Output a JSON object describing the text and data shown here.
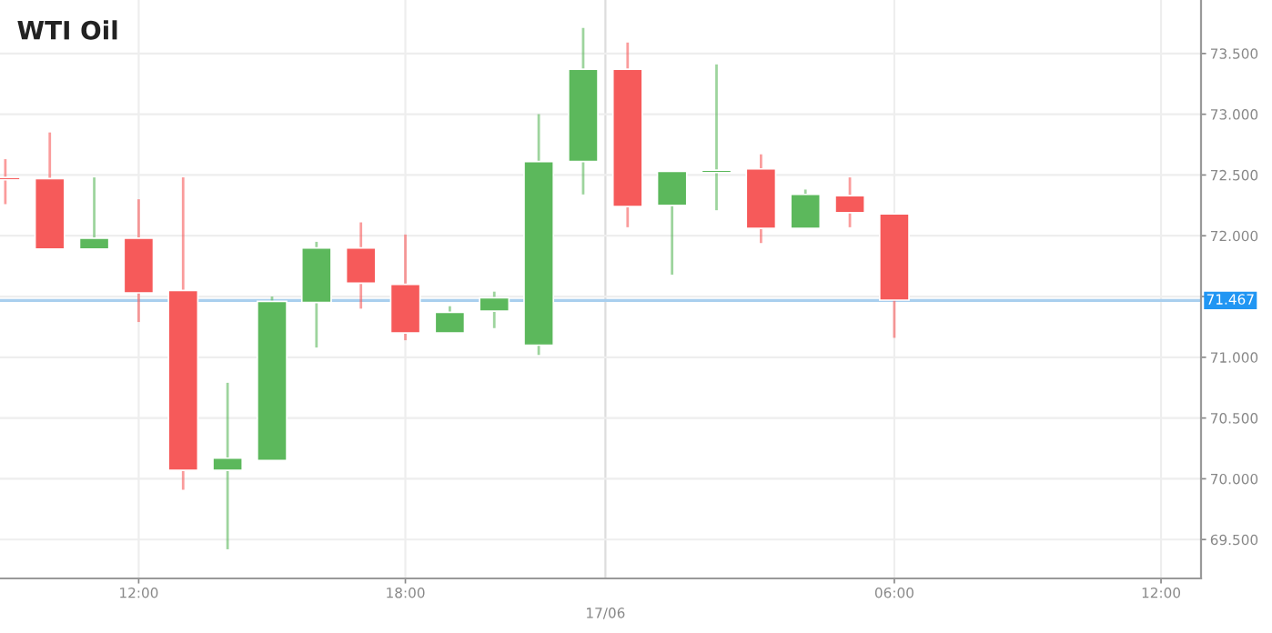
{
  "chart_data": {
    "type": "candlestick",
    "title": "WTI Oil",
    "categories": [
      null,
      null,
      null,
      "12:00",
      null,
      null,
      null,
      null,
      null,
      "18:00",
      null,
      null,
      null,
      null,
      null,
      null,
      null,
      null,
      null,
      null,
      "06:00",
      null,
      null,
      null,
      null,
      null,
      "12:00"
    ],
    "ohlc": [
      [
        72.47,
        72.63,
        72.26,
        72.46
      ],
      [
        72.47,
        72.85,
        71.89,
        71.89
      ],
      [
        71.89,
        72.48,
        71.89,
        71.98
      ],
      [
        71.98,
        72.3,
        71.29,
        71.53
      ],
      [
        71.55,
        72.48,
        69.91,
        70.07
      ],
      [
        70.07,
        70.79,
        69.42,
        70.17
      ],
      [
        70.15,
        71.5,
        70.15,
        71.46
      ],
      [
        71.45,
        71.95,
        71.08,
        71.9
      ],
      [
        71.9,
        72.11,
        71.4,
        71.61
      ],
      [
        71.6,
        72.01,
        71.14,
        71.2
      ],
      [
        71.2,
        71.42,
        71.2,
        71.37
      ],
      [
        71.38,
        71.54,
        71.24,
        71.49
      ],
      [
        71.1,
        73.0,
        71.02,
        72.61
      ],
      [
        72.61,
        73.71,
        72.34,
        73.37
      ],
      [
        73.37,
        73.59,
        72.07,
        72.24
      ],
      [
        72.25,
        72.53,
        71.68,
        72.53
      ],
      [
        72.52,
        73.41,
        72.21,
        72.54
      ],
      [
        72.55,
        72.67,
        71.94,
        72.06
      ],
      [
        72.06,
        72.38,
        72.06,
        72.34
      ],
      [
        72.33,
        72.48,
        72.07,
        72.19
      ],
      [
        72.18,
        72.18,
        71.16,
        71.47
      ],
      null,
      null,
      null,
      null,
      null,
      null
    ],
    "colors": [
      "#f65a5a",
      "#f65a5a",
      "#5cb85c",
      "#f65a5a",
      "#f65a5a",
      "#5cb85c",
      "#5cb85c",
      "#5cb85c",
      "#f65a5a",
      "#f65a5a",
      "#5cb85c",
      "#5cb85c",
      "#5cb85c",
      "#5cb85c",
      "#f65a5a",
      "#5cb85c",
      "#5cb85c",
      "#f65a5a",
      "#5cb85c",
      "#f65a5a",
      "#f65a5a",
      null,
      null,
      null,
      null,
      null,
      null
    ],
    "ylim": [
      69.18,
      73.94
    ],
    "yticks": [
      {
        "value": 69.5,
        "label": "69.500"
      },
      {
        "value": 70,
        "label": "70.000"
      },
      {
        "value": 70.5,
        "label": "70.500"
      },
      {
        "value": 71,
        "label": "71.000"
      },
      {
        "value": 71.5,
        "label": null
      },
      {
        "value": 72,
        "label": "72.000"
      },
      {
        "value": 72.5,
        "label": "72.500"
      },
      {
        "value": 73,
        "label": "73.000"
      },
      {
        "value": 73.5,
        "label": "73.500"
      }
    ],
    "ref_lines": [
      {
        "axis": "y",
        "value": 71.467,
        "label": "71.467",
        "color": "#a9cfee"
      }
    ],
    "annotations": [
      "17/06"
    ],
    "grid": true
  }
}
